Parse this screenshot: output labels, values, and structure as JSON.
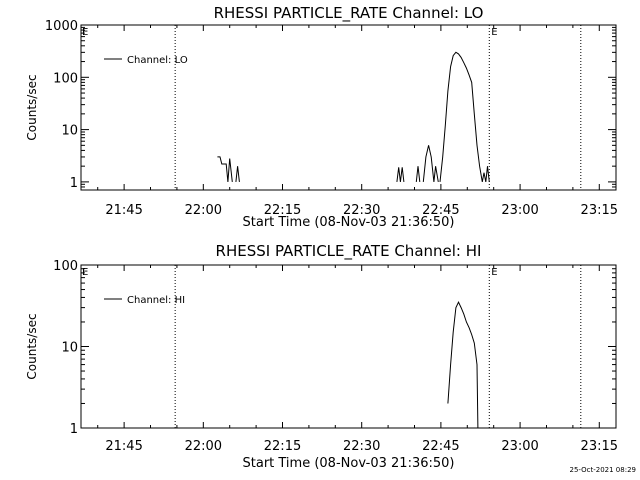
{
  "chart_data": [
    {
      "type": "line",
      "title": "RHESSI PARTICLE_RATE Channel: LO",
      "xlabel": "Start Time (08-Nov-03 21:36:50)",
      "ylabel": "Counts/sec",
      "yscale": "log",
      "xlim": [
        "21:36:50",
        "23:18:10"
      ],
      "ylim": [
        0.7,
        1000
      ],
      "xticks": [
        "21:45",
        "22:00",
        "22:15",
        "22:30",
        "22:45",
        "23:00",
        "23:15"
      ],
      "yticks": [
        "1",
        "10",
        "100",
        "1000"
      ],
      "legend": {
        "label": "Channel: LO",
        "position": "top-left"
      },
      "markers": [
        {
          "time": "21:54:40",
          "label": ""
        },
        {
          "time": "22:54:10",
          "label": "E"
        },
        {
          "time": "23:11:30",
          "label": ""
        }
      ],
      "corner_label": "E",
      "series": [
        {
          "segments": [
            [
              [
                "22:02:40",
                3.0
              ],
              [
                "22:03:10",
                3.0
              ],
              [
                "22:03:30",
                2.2
              ],
              [
                "22:04:20",
                2.2
              ],
              [
                "22:04:40",
                1.0
              ],
              [
                "22:05:00",
                2.8
              ],
              [
                "22:05:30",
                1.0
              ]
            ],
            [
              [
                "22:06:10",
                1.0
              ],
              [
                "22:06:30",
                2.0
              ],
              [
                "22:06:50",
                1.0
              ]
            ],
            [
              [
                "22:36:40",
                1.0
              ],
              [
                "22:37:00",
                1.9
              ],
              [
                "22:37:20",
                1.0
              ],
              [
                "22:37:40",
                1.9
              ],
              [
                "22:38:00",
                1.0
              ]
            ],
            [
              [
                "22:40:20",
                1.0
              ],
              [
                "22:40:40",
                2.0
              ],
              [
                "22:41:00",
                1.0
              ]
            ],
            [
              [
                "22:41:40",
                1.0
              ],
              [
                "22:42:10",
                3.0
              ],
              [
                "22:42:40",
                5.0
              ],
              [
                "22:43:10",
                3.0
              ],
              [
                "22:43:40",
                1.0
              ],
              [
                "22:44:00",
                2.0
              ],
              [
                "22:44:30",
                1.0
              ]
            ],
            [
              [
                "22:44:50",
                1.0
              ],
              [
                "22:45:20",
                3.0
              ],
              [
                "22:45:50",
                12.0
              ],
              [
                "22:46:20",
                55.0
              ],
              [
                "22:46:50",
                160.0
              ],
              [
                "22:47:20",
                260.0
              ],
              [
                "22:47:50",
                300.0
              ],
              [
                "22:48:20",
                280.0
              ],
              [
                "22:48:50",
                240.0
              ],
              [
                "22:49:20",
                190.0
              ],
              [
                "22:49:50",
                150.0
              ],
              [
                "22:50:20",
                110.0
              ],
              [
                "22:50:50",
                80.0
              ],
              [
                "22:51:20",
                20.0
              ],
              [
                "22:51:50",
                5.0
              ],
              [
                "22:52:20",
                2.0
              ],
              [
                "22:52:50",
                1.0
              ],
              [
                "22:53:10",
                1.5
              ],
              [
                "22:53:30",
                1.0
              ],
              [
                "22:53:50",
                2.0
              ],
              [
                "22:54:10",
                1.0
              ]
            ]
          ]
        }
      ]
    },
    {
      "type": "line",
      "title": "RHESSI PARTICLE_RATE Channel: HI",
      "xlabel": "Start Time (08-Nov-03 21:36:50)",
      "ylabel": "Counts/sec",
      "yscale": "log",
      "xlim": [
        "21:36:50",
        "23:18:10"
      ],
      "ylim": [
        1,
        100
      ],
      "xticks": [
        "21:45",
        "22:00",
        "22:15",
        "22:30",
        "22:45",
        "23:00",
        "23:15"
      ],
      "yticks": [
        "1",
        "10",
        "100"
      ],
      "legend": {
        "label": "Channel: HI",
        "position": "top-left"
      },
      "markers": [
        {
          "time": "21:54:40",
          "label": ""
        },
        {
          "time": "22:54:10",
          "label": "E"
        },
        {
          "time": "23:11:30",
          "label": ""
        }
      ],
      "corner_label": "E",
      "series": [
        {
          "segments": [
            [
              [
                "22:46:20",
                2.0
              ],
              [
                "22:46:50",
                6.0
              ],
              [
                "22:47:20",
                15.0
              ],
              [
                "22:47:50",
                30.0
              ],
              [
                "22:48:20",
                35.0
              ],
              [
                "22:48:50",
                30.0
              ],
              [
                "22:49:20",
                25.0
              ],
              [
                "22:49:50",
                20.0
              ],
              [
                "22:50:20",
                17.0
              ],
              [
                "22:50:50",
                14.0
              ],
              [
                "22:51:20",
                11.0
              ],
              [
                "22:51:50",
                6.0
              ],
              [
                "22:52:00",
                1.0
              ]
            ]
          ]
        }
      ]
    }
  ],
  "footer": {
    "timestamp": "25-Oct-2021 08:29"
  }
}
